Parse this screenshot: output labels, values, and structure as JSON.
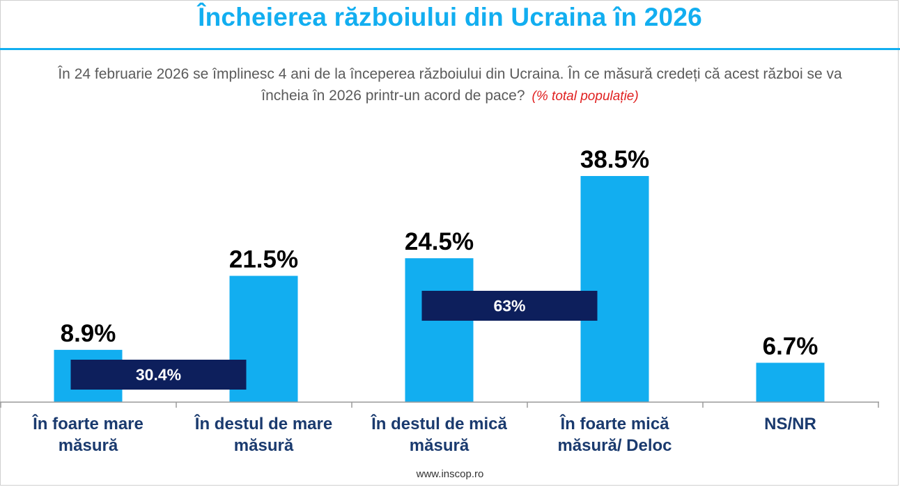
{
  "header": {
    "title": "Încheierea războiului din Ucraina în 2026"
  },
  "question": {
    "text": "În 24 februarie 2026 se împlinesc 4 ani de la începerea războiului din Ucraina. În ce măsură credeți că acest război se va încheia în 2026 printr-un acord de pace?",
    "note": "(% total populație)"
  },
  "chart_data": {
    "type": "bar",
    "categories": [
      [
        "În foarte mare",
        "măsură"
      ],
      [
        "În destul de mare",
        "măsură"
      ],
      [
        "În destul de mică",
        "măsură"
      ],
      [
        "În foarte mică",
        "măsură/ Deloc"
      ],
      [
        "NS/NR"
      ]
    ],
    "values": [
      8.9,
      21.5,
      24.5,
      38.5,
      6.7
    ],
    "value_labels": [
      "8.9%",
      "21.5%",
      "24.5%",
      "38.5%",
      "6.7%"
    ],
    "groups": [
      {
        "label": "30.4%",
        "value": 30.4,
        "categories": [
          0,
          1
        ]
      },
      {
        "label": "63%",
        "value": 63,
        "categories": [
          2,
          3
        ]
      }
    ],
    "ylim": [
      0,
      40
    ],
    "grid": false,
    "legend": "none",
    "colors": {
      "bar": "#12aef0",
      "group_box": "#0d1f5c",
      "label": "#000000",
      "category": "#1a3a6e"
    }
  },
  "footer": {
    "site": "www.inscop.ro"
  }
}
